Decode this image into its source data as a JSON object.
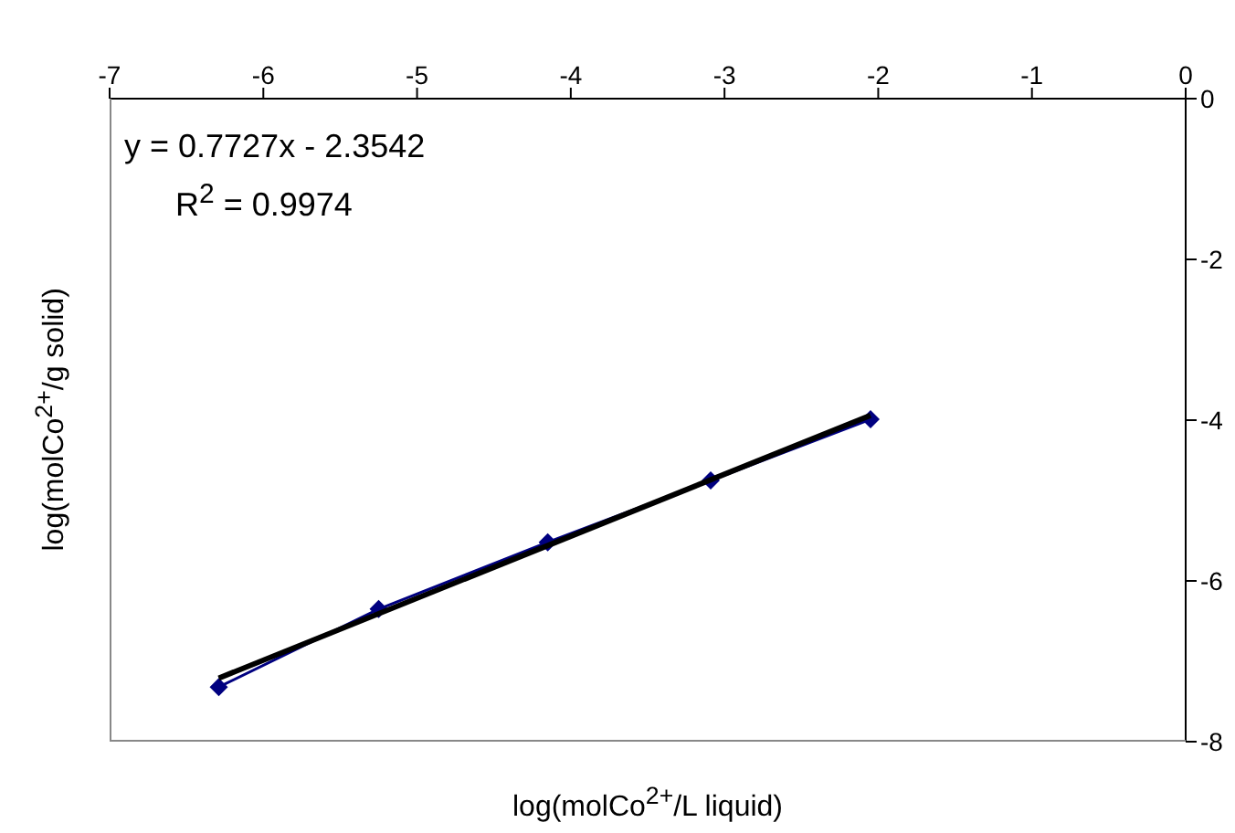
{
  "chart_data": {
    "type": "line",
    "xlabel": "log(molCo$^{2+}$/L liquid)",
    "ylabel": "log(molCo$^{2+}$/g solid)",
    "annotations": [
      "y = 0.7727x - 2.3542",
      "R$^{2}$ = 0.9974"
    ],
    "series": [
      {
        "color": "#000080",
        "x": [
          -6.29,
          -5.25,
          -4.15,
          -3.09,
          -2.05
        ],
        "values": [
          -7.32,
          -6.35,
          -5.52,
          -4.75,
          -3.99
        ]
      },
      {
        "color": "#000000",
        "marker": "none",
        "x": [
          -6.29,
          -2.05
        ],
        "values": [
          -7.21,
          -3.94
        ]
      }
    ],
    "xlim": [
      -7,
      0
    ],
    "xticks": [
      -7,
      -6,
      -5,
      -4,
      -3,
      -2,
      -1,
      0
    ],
    "ylim": [
      -8,
      0
    ],
    "yticks": [
      0,
      -2,
      -4,
      -6,
      -8
    ],
    "grid": false,
    "legend": false,
    "marker": "diamond",
    "line_style": "solid"
  }
}
